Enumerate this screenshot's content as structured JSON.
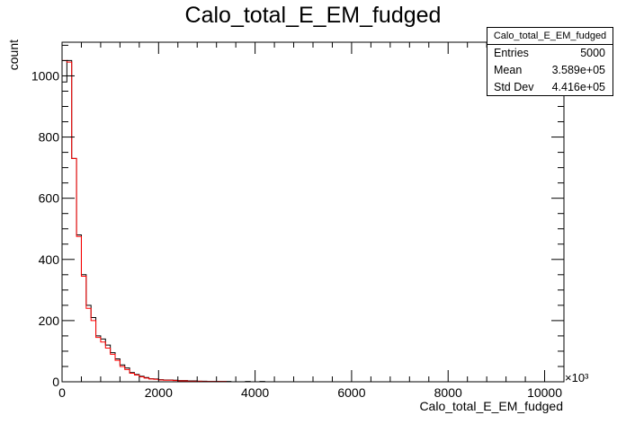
{
  "chart_data": {
    "type": "histogram",
    "title": "Calo_total_E_EM_fudged",
    "xlabel": "Calo_total_E_EM_fudged",
    "ylabel": "count",
    "x_multiplier_label": "×10³",
    "xlim": [
      0,
      10400
    ],
    "ylim": [
      0,
      1110
    ],
    "x_ticks": [
      0,
      2000,
      4000,
      6000,
      8000,
      10000
    ],
    "y_ticks": [
      0,
      200,
      400,
      600,
      800,
      1000
    ],
    "bin_width": 100,
    "series": [
      {
        "color": "#000000",
        "values": [
          980,
          1050,
          730,
          480,
          350,
          250,
          210,
          150,
          140,
          120,
          95,
          75,
          55,
          45,
          30,
          24,
          18,
          14,
          10,
          9,
          7,
          6,
          6,
          5,
          4,
          4,
          3,
          3,
          2,
          2,
          1,
          1,
          1,
          1,
          1,
          0,
          0,
          0,
          1,
          0,
          0,
          1
        ]
      },
      {
        "color": "#ff0000",
        "values": [
          1050,
          1045,
          730,
          475,
          345,
          240,
          200,
          145,
          130,
          110,
          90,
          70,
          50,
          40,
          28,
          22,
          16,
          12,
          9,
          8,
          6,
          5,
          5,
          4,
          3,
          3,
          2,
          2,
          2,
          1,
          1,
          1,
          1,
          1,
          0,
          0,
          0,
          0,
          0,
          0,
          0,
          0
        ]
      }
    ]
  },
  "stats": {
    "name": "Calo_total_E_EM_fudged",
    "entries_label": "Entries",
    "entries_value": "5000",
    "mean_label": "Mean",
    "mean_value": "3.589e+05",
    "stddev_label": "Std Dev",
    "stddev_value": "4.416e+05"
  }
}
